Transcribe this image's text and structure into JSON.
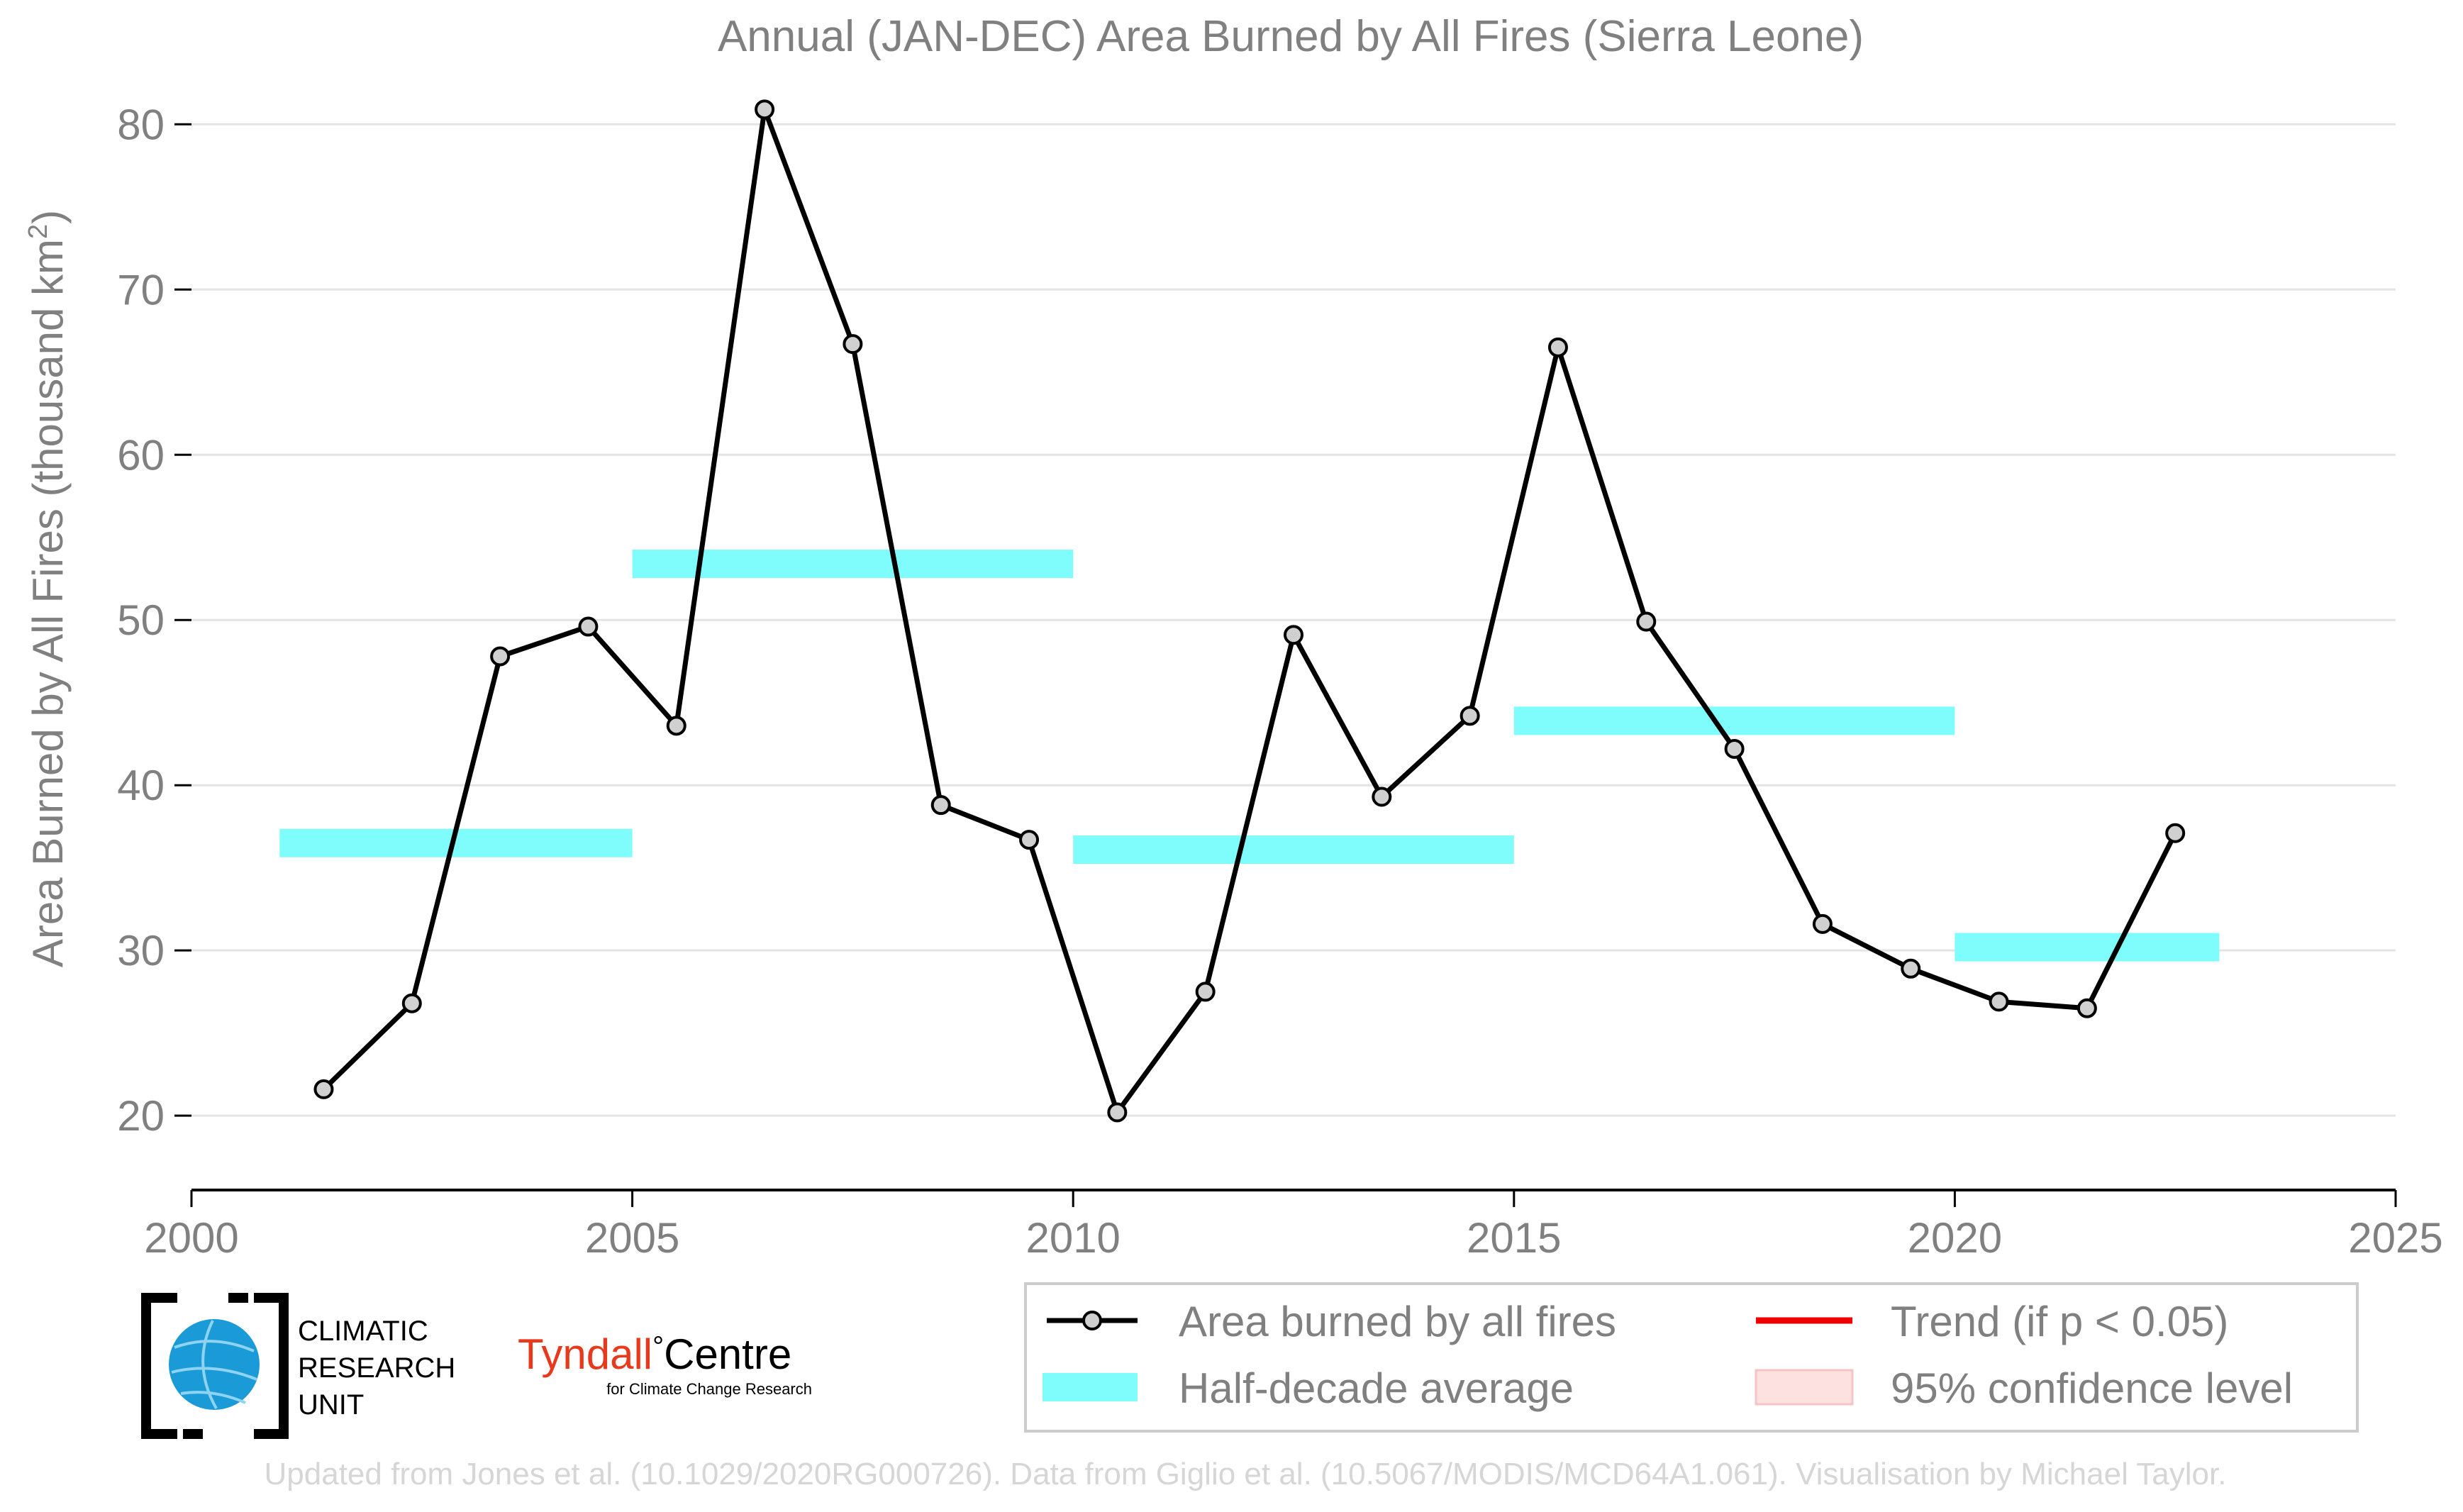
{
  "chart_data": {
    "type": "line",
    "title": "Annual (JAN-DEC) Area Burned by All Fires (Sierra Leone)",
    "ylabel": "Area Burned by All Fires (thousand km",
    "ylabel_sup": "2",
    "ylabel_close": ")",
    "xlabel": "",
    "xlim": [
      2000,
      2025
    ],
    "ylim": [
      15.5,
      81
    ],
    "xticks": [
      2000,
      2005,
      2010,
      2015,
      2020,
      2025
    ],
    "yticks": [
      20,
      30,
      40,
      50,
      60,
      70,
      80
    ],
    "grid": "horizontal",
    "series": [
      {
        "name": "Area burned by all fires",
        "color": "#000000",
        "marker_fill": "#d0d0d0",
        "points": [
          {
            "x": 2001.5,
            "y": 21.6
          },
          {
            "x": 2002.5,
            "y": 26.8
          },
          {
            "x": 2003.5,
            "y": 47.8
          },
          {
            "x": 2004.5,
            "y": 49.6
          },
          {
            "x": 2005.5,
            "y": 43.6
          },
          {
            "x": 2006.5,
            "y": 80.9
          },
          {
            "x": 2007.5,
            "y": 66.7
          },
          {
            "x": 2008.5,
            "y": 38.8
          },
          {
            "x": 2009.5,
            "y": 36.7
          },
          {
            "x": 2010.5,
            "y": 20.2
          },
          {
            "x": 2011.5,
            "y": 27.5
          },
          {
            "x": 2012.5,
            "y": 49.1
          },
          {
            "x": 2013.5,
            "y": 39.3
          },
          {
            "x": 2014.5,
            "y": 44.2
          },
          {
            "x": 2015.5,
            "y": 66.5
          },
          {
            "x": 2016.5,
            "y": 49.9
          },
          {
            "x": 2017.5,
            "y": 42.2
          },
          {
            "x": 2018.5,
            "y": 31.6
          },
          {
            "x": 2019.5,
            "y": 28.9
          },
          {
            "x": 2020.5,
            "y": 26.9
          },
          {
            "x": 2021.5,
            "y": 26.5
          },
          {
            "x": 2022.5,
            "y": 37.1
          }
        ]
      }
    ],
    "half_decade_average": {
      "name": "Half-decade average",
      "color": "#7ffcfc",
      "bars": [
        {
          "x0": 2001,
          "x1": 2005,
          "y": 36.5
        },
        {
          "x0": 2005,
          "x1": 2010,
          "y": 53.4
        },
        {
          "x0": 2010,
          "x1": 2015,
          "y": 36.1
        },
        {
          "x0": 2015,
          "x1": 2020,
          "y": 43.9
        },
        {
          "x0": 2020,
          "x1": 2023,
          "y": 30.2
        }
      ]
    },
    "legend": {
      "placement": "bottom-right",
      "entries": [
        {
          "label": "Area burned by all fires",
          "kind": "line-marker",
          "color": "#000000"
        },
        {
          "label": "Trend (if p < 0.05)",
          "kind": "line",
          "color": "#ee0000"
        },
        {
          "label": "Half-decade average",
          "kind": "band",
          "color": "#7ffcfc"
        },
        {
          "label": "95% confidence level",
          "kind": "patch",
          "color": "#fde0e0"
        }
      ]
    }
  },
  "logos": {
    "cru_lines": [
      "CLIMATIC",
      "RESEARCH",
      "UNIT"
    ],
    "tyndall_name": "Tyndall",
    "tyndall_degree": "°",
    "tyndall_centre": "Centre",
    "tyndall_sub": "for Climate Change Research"
  },
  "footer": {
    "credit": "Updated from Jones et al. (10.1029/2020RG000726). Data from Giglio et al. (10.5067/MODIS/MCD64A1.061). Visualisation by Michael Taylor."
  },
  "colors": {
    "axis_text": "#808080",
    "grid": "#e4e4e4",
    "footer_text": "#d6d6d6",
    "cru_blue": "#1a9ad6",
    "tyndall_red": "#e8391c"
  }
}
